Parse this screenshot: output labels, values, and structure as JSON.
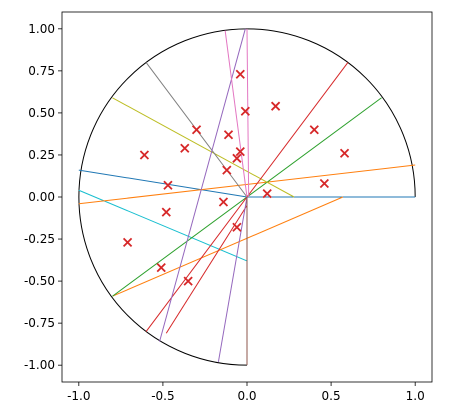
{
  "chart_data": {
    "type": "scatter",
    "title": "",
    "xlabel": "",
    "ylabel": "",
    "xlim": [
      -1.1,
      1.1
    ],
    "ylim": [
      -1.1,
      1.1
    ],
    "grid": false,
    "x_ticks": [
      "-1.0",
      "-0.5",
      "0.0",
      "0.5",
      "1.0"
    ],
    "x_tick_values": [
      -1.0,
      -0.5,
      0.0,
      0.5,
      1.0
    ],
    "y_ticks": [
      "1.00",
      "0.75",
      "0.50",
      "0.25",
      "0.00",
      "-0.25",
      "-0.50",
      "-0.75",
      "-1.00"
    ],
    "y_tick_values": [
      1.0,
      0.75,
      0.5,
      0.25,
      0.0,
      -0.25,
      -0.5,
      -0.75,
      -1.0
    ],
    "boundary": {
      "shape": "semicircle-left",
      "radius": 1.0,
      "color": "#000000"
    },
    "points": {
      "marker": "x",
      "color": "#d62728",
      "x": [
        -0.04,
        -0.01,
        -0.3,
        -0.37,
        -0.11,
        0.17,
        0.4,
        0.58,
        -0.61,
        -0.04,
        -0.06,
        -0.12,
        -0.47,
        0.46,
        0.12,
        -0.14,
        -0.48,
        -0.06,
        -0.71,
        -0.51,
        -0.35
      ],
      "y": [
        0.73,
        0.51,
        0.4,
        0.29,
        0.37,
        0.54,
        0.4,
        0.26,
        0.25,
        0.27,
        0.23,
        0.16,
        0.07,
        0.08,
        0.02,
        -0.03,
        -0.09,
        -0.18,
        -0.27,
        -0.42,
        -0.5
      ]
    },
    "segments": [
      {
        "color": "#1f77b4",
        "x1": -1.0,
        "y1": 0.16,
        "x2": 0.0,
        "y2": 0.0
      },
      {
        "color": "#1f77b4",
        "x1": 0.0,
        "y1": 0.0,
        "x2": 1.0,
        "y2": 0.0
      },
      {
        "color": "#17becf",
        "x1": -1.0,
        "y1": 0.04,
        "x2": 0.0,
        "y2": -0.38
      },
      {
        "color": "#ff7f0e",
        "x1": -1.0,
        "y1": -0.04,
        "x2": 1.0,
        "y2": 0.19
      },
      {
        "color": "#ff7f0e",
        "x1": -0.8,
        "y1": -0.59,
        "x2": 0.57,
        "y2": 0.0
      },
      {
        "color": "#2ca02c",
        "x1": -0.8,
        "y1": -0.59,
        "x2": 0.8,
        "y2": 0.59
      },
      {
        "color": "#bcbd22",
        "x1": -0.8,
        "y1": 0.59,
        "x2": 0.28,
        "y2": 0.0
      },
      {
        "color": "#7f7f7f",
        "x1": -0.6,
        "y1": 0.8,
        "x2": 0.0,
        "y2": 0.0
      },
      {
        "color": "#d62728",
        "x1": -0.6,
        "y1": -0.8,
        "x2": 0.6,
        "y2": 0.8
      },
      {
        "color": "#d62728",
        "x1": -0.48,
        "y1": -0.81,
        "x2": 0.0,
        "y2": -0.05
      },
      {
        "color": "#9467bd",
        "x1": -0.52,
        "y1": -0.86,
        "x2": -0.01,
        "y2": 1.0
      },
      {
        "color": "#9467bd",
        "x1": -0.17,
        "y1": -0.98,
        "x2": 0.0,
        "y2": 0.0
      },
      {
        "color": "#e377c2",
        "x1": -0.13,
        "y1": 0.99,
        "x2": 0.0,
        "y2": 0.0
      },
      {
        "color": "#8c564b",
        "x1": 0.0,
        "y1": 0.0,
        "x2": 0.0,
        "y2": -1.0
      },
      {
        "color": "#e377c2",
        "x1": 0.0,
        "y1": 1.0,
        "x2": 0.01,
        "y2": 0.0
      }
    ]
  }
}
